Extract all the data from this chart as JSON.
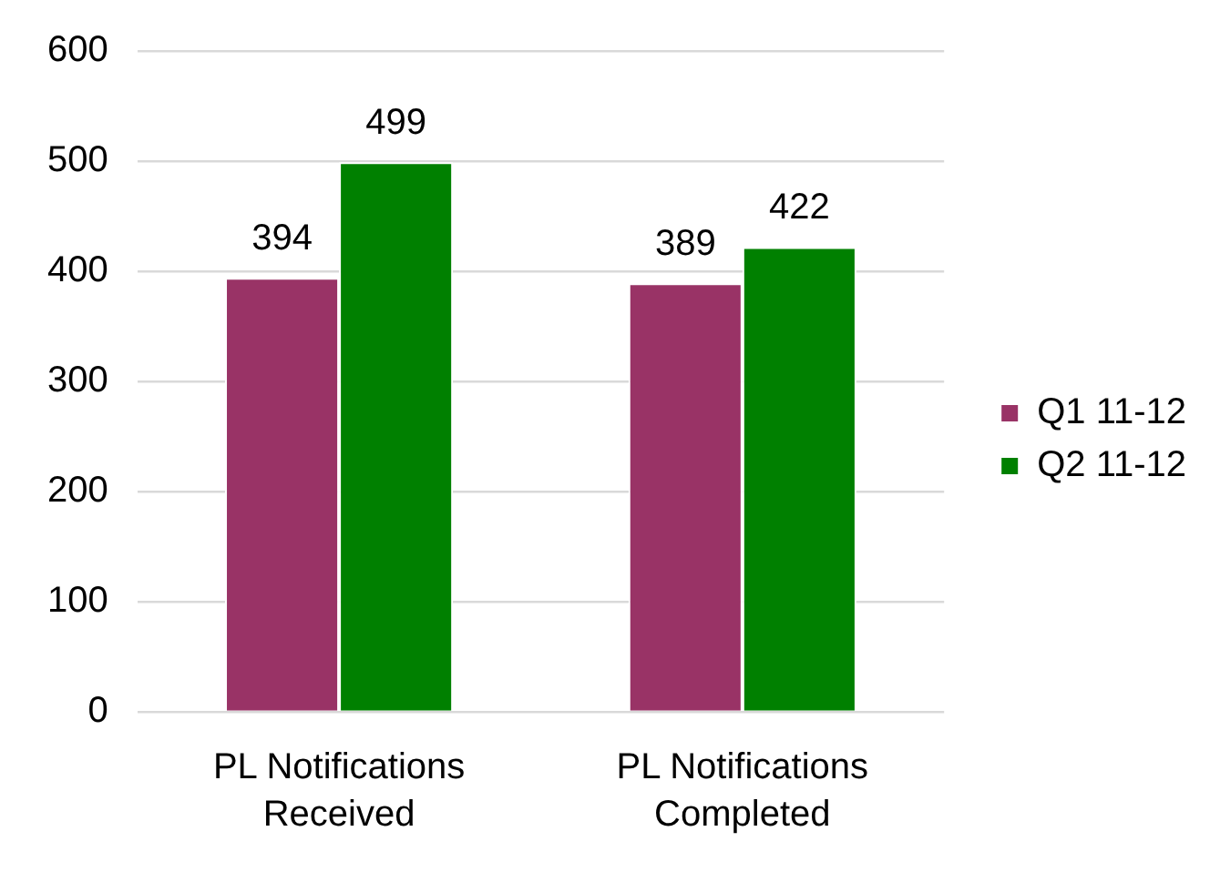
{
  "chart_data": {
    "type": "bar",
    "categories": [
      "PL Notifications Received",
      "PL Notifications Completed"
    ],
    "series": [
      {
        "name": "Q1 11-12",
        "color": "#993366",
        "values": [
          394,
          389
        ]
      },
      {
        "name": "Q2 11-12",
        "color": "#008000",
        "values": [
          499,
          422
        ]
      }
    ],
    "ylim": [
      0,
      600
    ],
    "yticks": [
      0,
      100,
      200,
      300,
      400,
      500,
      600
    ],
    "grid": "y",
    "legend": "right",
    "data_labels": true
  }
}
